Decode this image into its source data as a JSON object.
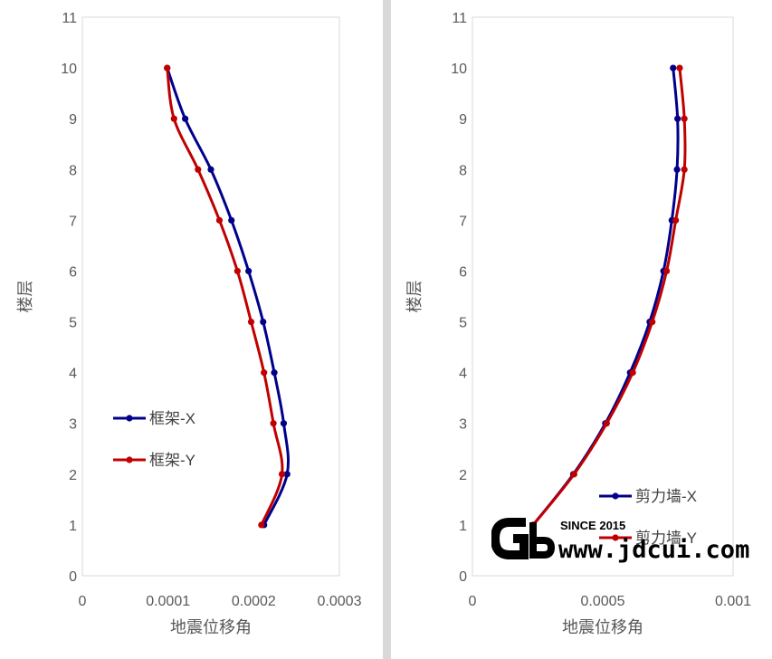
{
  "chart_data": [
    {
      "type": "line",
      "title": "",
      "xlabel": "地震位移角",
      "ylabel": "楼层",
      "xlim": [
        0,
        0.0003
      ],
      "ylim": [
        0,
        11
      ],
      "x_ticks": [
        "0",
        "0.0001",
        "0.0002",
        "0.0003"
      ],
      "y_ticks": [
        "0",
        "1",
        "2",
        "3",
        "4",
        "5",
        "6",
        "7",
        "8",
        "9",
        "10",
        "11"
      ],
      "legend_position": "left-middle",
      "series": [
        {
          "name": "框架-X",
          "color": "#00008b",
          "points": [
            [
              0.000212,
              1
            ],
            [
              0.000239,
              2
            ],
            [
              0.000235,
              3
            ],
            [
              0.000224,
              4
            ],
            [
              0.000211,
              5
            ],
            [
              0.000194,
              6
            ],
            [
              0.000174,
              7
            ],
            [
              0.00015,
              8
            ],
            [
              0.00012,
              9
            ],
            [
              9.9e-05,
              10
            ]
          ]
        },
        {
          "name": "框架-Y",
          "color": "#c00000",
          "points": [
            [
              0.000209,
              1
            ],
            [
              0.000233,
              2
            ],
            [
              0.000223,
              3
            ],
            [
              0.000212,
              4
            ],
            [
              0.000197,
              5
            ],
            [
              0.000181,
              6
            ],
            [
              0.00016,
              7
            ],
            [
              0.000135,
              8
            ],
            [
              0.000107,
              9
            ],
            [
              9.9e-05,
              10
            ]
          ]
        }
      ]
    },
    {
      "type": "line",
      "title": "",
      "xlabel": "地震位移角",
      "ylabel": "楼层",
      "xlim": [
        0,
        0.001
      ],
      "ylim": [
        0,
        11
      ],
      "x_ticks": [
        "0",
        "0.0005",
        "0.001"
      ],
      "y_ticks": [
        "0",
        "1",
        "2",
        "3",
        "4",
        "5",
        "6",
        "7",
        "8",
        "9",
        "10",
        "11"
      ],
      "legend_position": "bottom-right",
      "series": [
        {
          "name": "剪力墙-X",
          "color": "#00008b",
          "points": [
            [
              0.000233,
              1
            ],
            [
              0.000387,
              2
            ],
            [
              0.00051,
              3
            ],
            [
              0.000605,
              4
            ],
            [
              0.00068,
              5
            ],
            [
              0.000733,
              6
            ],
            [
              0.000765,
              7
            ],
            [
              0.000785,
              8
            ],
            [
              0.000787,
              9
            ],
            [
              0.00077,
              10
            ]
          ]
        },
        {
          "name": "剪力墙-Y",
          "color": "#c00000",
          "points": [
            [
              0.000233,
              1
            ],
            [
              0.00039,
              2
            ],
            [
              0.000515,
              3
            ],
            [
              0.000615,
              4
            ],
            [
              0.00069,
              5
            ],
            [
              0.000745,
              6
            ],
            [
              0.00078,
              7
            ],
            [
              0.000813,
              8
            ],
            [
              0.000813,
              9
            ],
            [
              0.000795,
              10
            ]
          ]
        }
      ]
    }
  ],
  "watermark": {
    "logo_letters": "GB",
    "since": "SINCE 2015",
    "site": "www.jdcui.com"
  }
}
